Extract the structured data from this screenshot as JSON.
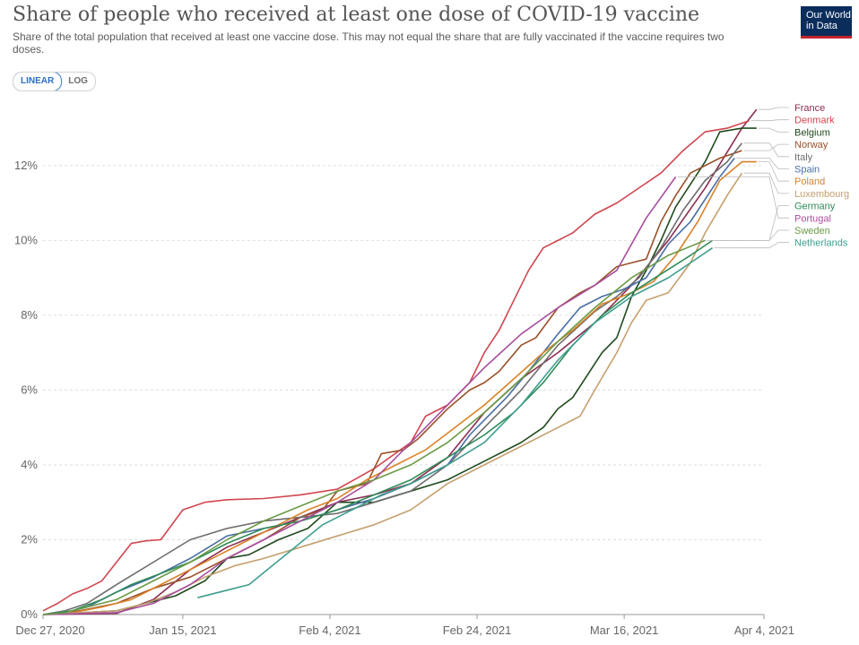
{
  "header": {
    "title": "Share of people who received at least one dose of COVID-19 vaccine",
    "subtitle": "Share of the total population that received at least one vaccine dose. This may not equal the share that are fully vaccinated if the vaccine requires two doses.",
    "logo_line1": "Our World",
    "logo_line2": "in Data"
  },
  "controls": {
    "linear_label": "LINEAR",
    "log_label": "LOG",
    "active": "LINEAR"
  },
  "chart_data": {
    "type": "line",
    "title": "Share of people who received at least one dose of COVID-19 vaccine",
    "xlabel": "",
    "ylabel": "",
    "x_ticks": [
      {
        "day": 0,
        "label": "Dec 27, 2020"
      },
      {
        "day": 19,
        "label": "Jan 15, 2021"
      },
      {
        "day": 39,
        "label": "Feb 4, 2021"
      },
      {
        "day": 59,
        "label": "Feb 24, 2021"
      },
      {
        "day": 79,
        "label": "Mar 16, 2021"
      },
      {
        "day": 98,
        "label": "Apr 4, 2021"
      }
    ],
    "y_ticks": [
      0,
      2,
      4,
      6,
      8,
      10,
      12
    ],
    "y_tick_labels": [
      "0%",
      "2%",
      "4%",
      "6%",
      "8%",
      "10%",
      "12%"
    ],
    "xlim": [
      0,
      98
    ],
    "ylim": [
      0,
      13.6
    ],
    "grid": true,
    "legend_position": "right",
    "series": [
      {
        "name": "France",
        "color": "#8c2d4f",
        "points": [
          [
            0,
            0.0
          ],
          [
            10,
            0.03
          ],
          [
            15,
            0.4
          ],
          [
            20,
            1.2
          ],
          [
            25,
            1.8
          ],
          [
            30,
            2.2
          ],
          [
            35,
            2.6
          ],
          [
            40,
            3.0
          ],
          [
            45,
            3.2
          ],
          [
            50,
            3.5
          ],
          [
            55,
            4.2
          ],
          [
            60,
            5.4
          ],
          [
            65,
            6.3
          ],
          [
            70,
            7.0
          ],
          [
            75,
            7.8
          ],
          [
            80,
            8.8
          ],
          [
            85,
            10.0
          ],
          [
            90,
            11.4
          ],
          [
            95,
            13.0
          ],
          [
            97,
            13.5
          ]
        ]
      },
      {
        "name": "Denmark",
        "color": "#d0464f",
        "points": [
          [
            0,
            0.1
          ],
          [
            2,
            0.3
          ],
          [
            4,
            0.55
          ],
          [
            6,
            0.7
          ],
          [
            8,
            0.9
          ],
          [
            10,
            1.4
          ],
          [
            12,
            1.9
          ],
          [
            14,
            1.97
          ],
          [
            16,
            2.0
          ],
          [
            19,
            2.8
          ],
          [
            22,
            3.0
          ],
          [
            25,
            3.07
          ],
          [
            30,
            3.1
          ],
          [
            35,
            3.2
          ],
          [
            40,
            3.35
          ],
          [
            45,
            3.9
          ],
          [
            50,
            4.6
          ],
          [
            52,
            5.3
          ],
          [
            55,
            5.6
          ],
          [
            58,
            6.2
          ],
          [
            60,
            7.0
          ],
          [
            62,
            7.6
          ],
          [
            64,
            8.4
          ],
          [
            66,
            9.2
          ],
          [
            68,
            9.8
          ],
          [
            70,
            10.0
          ],
          [
            72,
            10.2
          ],
          [
            75,
            10.7
          ],
          [
            78,
            11.0
          ],
          [
            81,
            11.4
          ],
          [
            84,
            11.8
          ],
          [
            87,
            12.4
          ],
          [
            90,
            12.9
          ],
          [
            93,
            13.0
          ],
          [
            96,
            13.2
          ]
        ]
      },
      {
        "name": "Belgium",
        "color": "#1f4a1c",
        "points": [
          [
            0,
            0.0
          ],
          [
            10,
            0.1
          ],
          [
            14,
            0.3
          ],
          [
            18,
            0.5
          ],
          [
            22,
            0.9
          ],
          [
            25,
            1.5
          ],
          [
            28,
            1.6
          ],
          [
            32,
            2.0
          ],
          [
            36,
            2.3
          ],
          [
            40,
            3.0
          ],
          [
            45,
            3.0
          ],
          [
            50,
            3.3
          ],
          [
            55,
            3.6
          ],
          [
            60,
            4.1
          ],
          [
            65,
            4.6
          ],
          [
            68,
            5.0
          ],
          [
            70,
            5.5
          ],
          [
            72,
            5.8
          ],
          [
            74,
            6.4
          ],
          [
            76,
            7.0
          ],
          [
            78,
            7.4
          ],
          [
            80,
            8.5
          ],
          [
            82,
            9.2
          ],
          [
            84,
            10.0
          ],
          [
            86,
            10.9
          ],
          [
            88,
            11.5
          ],
          [
            90,
            12.1
          ],
          [
            92,
            12.9
          ],
          [
            95,
            13.0
          ],
          [
            97,
            13.0
          ]
        ]
      },
      {
        "name": "Norway",
        "color": "#9a5129",
        "points": [
          [
            0,
            0.0
          ],
          [
            5,
            0.1
          ],
          [
            10,
            0.3
          ],
          [
            15,
            0.7
          ],
          [
            20,
            1.0
          ],
          [
            25,
            1.5
          ],
          [
            30,
            2.0
          ],
          [
            35,
            2.6
          ],
          [
            38,
            2.8
          ],
          [
            40,
            3.3
          ],
          [
            44,
            3.5
          ],
          [
            46,
            4.3
          ],
          [
            49,
            4.4
          ],
          [
            51,
            4.7
          ],
          [
            55,
            5.5
          ],
          [
            58,
            6.0
          ],
          [
            60,
            6.2
          ],
          [
            62,
            6.5
          ],
          [
            65,
            7.2
          ],
          [
            67,
            7.4
          ],
          [
            70,
            8.2
          ],
          [
            73,
            8.6
          ],
          [
            75,
            8.8
          ],
          [
            78,
            9.3
          ],
          [
            80,
            9.4
          ],
          [
            82,
            9.5
          ],
          [
            84,
            10.5
          ],
          [
            86,
            11.2
          ],
          [
            88,
            11.8
          ],
          [
            92,
            12.2
          ],
          [
            95,
            12.4
          ]
        ]
      },
      {
        "name": "Italy",
        "color": "#6d6d6d",
        "points": [
          [
            0,
            0.0
          ],
          [
            3,
            0.1
          ],
          [
            6,
            0.3
          ],
          [
            10,
            0.8
          ],
          [
            15,
            1.4
          ],
          [
            20,
            2.0
          ],
          [
            25,
            2.3
          ],
          [
            30,
            2.5
          ],
          [
            35,
            2.6
          ],
          [
            40,
            2.7
          ],
          [
            45,
            3.0
          ],
          [
            50,
            3.3
          ],
          [
            55,
            4.0
          ],
          [
            60,
            5.0
          ],
          [
            65,
            6.0
          ],
          [
            70,
            7.2
          ],
          [
            75,
            8.1
          ],
          [
            78,
            8.5
          ],
          [
            81,
            9.0
          ],
          [
            84,
            9.8
          ],
          [
            87,
            10.8
          ],
          [
            90,
            11.6
          ],
          [
            93,
            12.1
          ],
          [
            95,
            12.6
          ]
        ]
      },
      {
        "name": "Spain",
        "color": "#4a6fa5",
        "points": [
          [
            0,
            0.0
          ],
          [
            3,
            0.05
          ],
          [
            6,
            0.2
          ],
          [
            10,
            0.6
          ],
          [
            15,
            1.0
          ],
          [
            20,
            1.5
          ],
          [
            25,
            2.1
          ],
          [
            30,
            2.3
          ],
          [
            35,
            2.5
          ],
          [
            40,
            2.8
          ],
          [
            45,
            3.1
          ],
          [
            50,
            3.5
          ],
          [
            55,
            4.0
          ],
          [
            58,
            4.8
          ],
          [
            60,
            5.2
          ],
          [
            63,
            5.8
          ],
          [
            66,
            6.5
          ],
          [
            70,
            7.5
          ],
          [
            73,
            8.2
          ],
          [
            76,
            8.5
          ],
          [
            79,
            8.7
          ],
          [
            82,
            9.0
          ],
          [
            85,
            9.9
          ],
          [
            88,
            10.5
          ],
          [
            92,
            11.7
          ],
          [
            94,
            12.2
          ]
        ]
      },
      {
        "name": "Poland",
        "color": "#d98228",
        "points": [
          [
            0,
            0.0
          ],
          [
            4,
            0.05
          ],
          [
            8,
            0.2
          ],
          [
            12,
            0.4
          ],
          [
            16,
            0.8
          ],
          [
            20,
            1.2
          ],
          [
            24,
            1.6
          ],
          [
            28,
            2.0
          ],
          [
            32,
            2.4
          ],
          [
            36,
            2.8
          ],
          [
            40,
            3.1
          ],
          [
            44,
            3.6
          ],
          [
            48,
            4.0
          ],
          [
            52,
            4.4
          ],
          [
            56,
            5.0
          ],
          [
            60,
            5.6
          ],
          [
            64,
            6.3
          ],
          [
            68,
            7.0
          ],
          [
            72,
            7.6
          ],
          [
            76,
            8.3
          ],
          [
            80,
            8.6
          ],
          [
            83,
            8.9
          ],
          [
            86,
            9.6
          ],
          [
            89,
            10.5
          ],
          [
            92,
            11.6
          ],
          [
            95,
            12.1
          ],
          [
            97,
            12.1
          ]
        ]
      },
      {
        "name": "Luxembourg",
        "color": "#c4a06e",
        "points": [
          [
            0,
            0.0
          ],
          [
            5,
            0.05
          ],
          [
            10,
            0.1
          ],
          [
            14,
            0.3
          ],
          [
            18,
            0.6
          ],
          [
            22,
            1.0
          ],
          [
            26,
            1.3
          ],
          [
            30,
            1.5
          ],
          [
            35,
            1.8
          ],
          [
            40,
            2.1
          ],
          [
            45,
            2.4
          ],
          [
            50,
            2.8
          ],
          [
            55,
            3.5
          ],
          [
            60,
            4.0
          ],
          [
            65,
            4.5
          ],
          [
            70,
            5.0
          ],
          [
            73,
            5.3
          ],
          [
            75,
            6.0
          ],
          [
            78,
            7.0
          ],
          [
            80,
            7.8
          ],
          [
            82,
            8.4
          ],
          [
            85,
            8.6
          ],
          [
            88,
            9.4
          ],
          [
            90,
            10.2
          ],
          [
            93,
            11.2
          ],
          [
            95,
            11.8
          ]
        ]
      },
      {
        "name": "Germany",
        "color": "#2e8b57",
        "points": [
          [
            0,
            0.0
          ],
          [
            4,
            0.1
          ],
          [
            8,
            0.4
          ],
          [
            12,
            0.8
          ],
          [
            16,
            1.1
          ],
          [
            20,
            1.4
          ],
          [
            25,
            1.9
          ],
          [
            30,
            2.3
          ],
          [
            35,
            2.5
          ],
          [
            40,
            2.8
          ],
          [
            45,
            3.2
          ],
          [
            50,
            3.6
          ],
          [
            55,
            4.2
          ],
          [
            60,
            4.8
          ],
          [
            64,
            5.4
          ],
          [
            68,
            6.2
          ],
          [
            72,
            7.2
          ],
          [
            76,
            8.0
          ],
          [
            80,
            8.6
          ],
          [
            84,
            9.1
          ],
          [
            88,
            9.6
          ],
          [
            91,
            10.0
          ]
        ]
      },
      {
        "name": "Portugal",
        "color": "#a84e9e",
        "points": [
          [
            0,
            0.0
          ],
          [
            10,
            0.05
          ],
          [
            15,
            0.3
          ],
          [
            20,
            0.8
          ],
          [
            25,
            1.5
          ],
          [
            30,
            2.0
          ],
          [
            35,
            2.5
          ],
          [
            40,
            3.0
          ],
          [
            45,
            3.6
          ],
          [
            50,
            4.6
          ],
          [
            55,
            5.6
          ],
          [
            60,
            6.6
          ],
          [
            65,
            7.5
          ],
          [
            70,
            8.2
          ],
          [
            75,
            8.8
          ],
          [
            78,
            9.2
          ],
          [
            82,
            10.6
          ],
          [
            86,
            11.7
          ]
        ]
      },
      {
        "name": "Sweden",
        "color": "#6a9a45",
        "points": [
          [
            0,
            0.0
          ],
          [
            3,
            0.05
          ],
          [
            6,
            0.2
          ],
          [
            10,
            0.4
          ],
          [
            15,
            0.9
          ],
          [
            20,
            1.4
          ],
          [
            25,
            2.0
          ],
          [
            30,
            2.5
          ],
          [
            35,
            2.9
          ],
          [
            40,
            3.3
          ],
          [
            45,
            3.6
          ],
          [
            50,
            4.0
          ],
          [
            55,
            4.6
          ],
          [
            60,
            5.4
          ],
          [
            65,
            6.3
          ],
          [
            70,
            7.3
          ],
          [
            75,
            8.2
          ],
          [
            80,
            9.0
          ],
          [
            85,
            9.6
          ],
          [
            90,
            10.0
          ]
        ]
      },
      {
        "name": "Netherlands",
        "color": "#3f9e8f",
        "points": [
          [
            21,
            0.45
          ],
          [
            28,
            0.8
          ],
          [
            33,
            1.6
          ],
          [
            38,
            2.4
          ],
          [
            42,
            2.8
          ],
          [
            46,
            3.2
          ],
          [
            50,
            3.5
          ],
          [
            55,
            4.0
          ],
          [
            60,
            4.6
          ],
          [
            65,
            5.6
          ],
          [
            70,
            6.8
          ],
          [
            75,
            7.8
          ],
          [
            80,
            8.5
          ],
          [
            85,
            9.0
          ],
          [
            91,
            9.8
          ]
        ]
      }
    ]
  }
}
